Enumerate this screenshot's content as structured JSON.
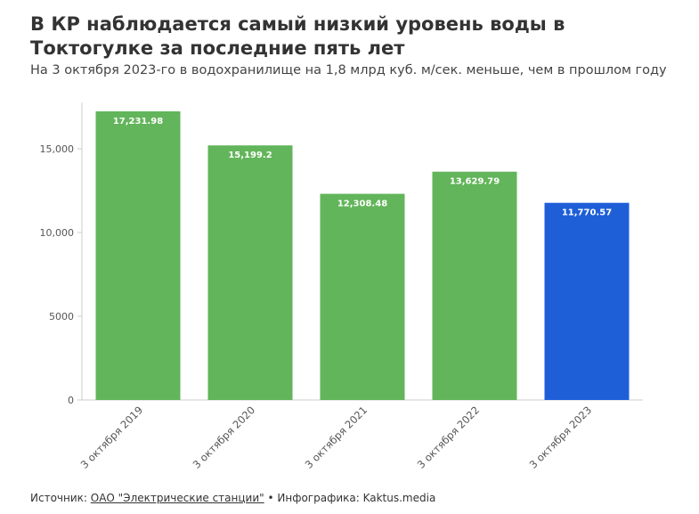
{
  "title": "В КР наблюдается самый низкий уровень воды в Токтогулке за последние пять лет",
  "subtitle": "На 3 октября 2023-го в водохранилище на 1,8 млрд куб. м/сек. меньше, чем в прошлом году",
  "footer": {
    "source_prefix": "Источник: ",
    "source_link": "ОАО \"Электрические станции\"",
    "separator": " • ",
    "credit": "Инфографика: Kaktus.media"
  },
  "chart_data": {
    "type": "bar",
    "categories": [
      "3 октября 2019",
      "3 октября 2020",
      "3 октября 2021",
      "3 октября 2022",
      "3 октября 2023"
    ],
    "values": [
      17231.98,
      15199.2,
      12308.48,
      13629.79,
      11770.57
    ],
    "value_labels": [
      "17,231.98",
      "15,199.2",
      "12,308.48",
      "13,629.79",
      "11,770.57"
    ],
    "bar_colors": [
      "#62b55a",
      "#62b55a",
      "#62b55a",
      "#62b55a",
      "#1e5fd8"
    ],
    "ylim": [
      0,
      17231.98
    ],
    "yticks": [
      0,
      5000,
      10000,
      15000
    ],
    "ytick_labels": [
      "0",
      "5000",
      "10,000",
      "15,000"
    ],
    "grid": false,
    "xlabel": "",
    "ylabel": ""
  }
}
